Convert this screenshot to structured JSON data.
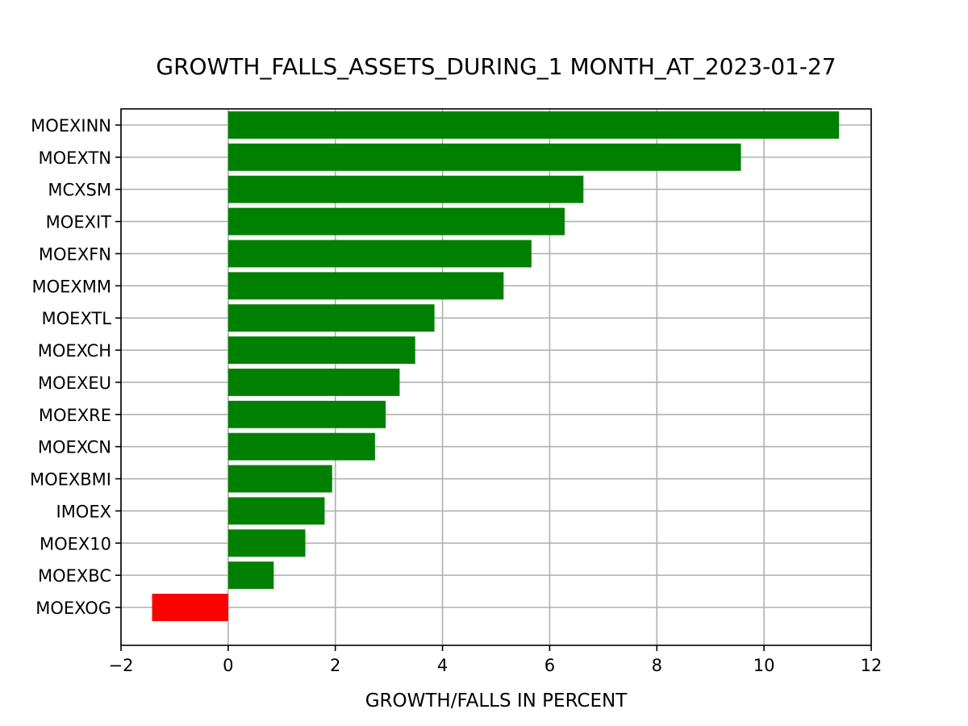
{
  "chart_data": {
    "type": "bar",
    "orientation": "horizontal",
    "title": "GROWTH_FALLS_ASSETS_DURING_1 MONTH_AT_2023-01-27",
    "xlabel": "GROWTH/FALLS IN PERCENT",
    "ylabel": "",
    "xlim": [
      -2,
      12
    ],
    "xticks": [
      -2,
      0,
      2,
      4,
      6,
      8,
      10,
      12
    ],
    "xtick_labels": [
      "−2",
      "0",
      "2",
      "4",
      "6",
      "8",
      "10",
      "12"
    ],
    "grid": true,
    "positive_color": "#008000",
    "negative_color": "#ff0000",
    "categories": [
      "MOEXINN",
      "MOEXTN",
      "MCXSM",
      "MOEXIT",
      "MOEXFN",
      "MOEXMM",
      "MOEXTL",
      "MOEXCH",
      "MOEXEU",
      "MOEXRE",
      "MOEXCN",
      "MOEXBMI",
      "IMOEX",
      "MOEX10",
      "MOEXBC",
      "MOEXOG"
    ],
    "values": [
      11.4,
      9.57,
      6.63,
      6.28,
      5.66,
      5.14,
      3.85,
      3.49,
      3.2,
      2.94,
      2.74,
      1.94,
      1.8,
      1.44,
      0.85,
      -1.42
    ]
  }
}
